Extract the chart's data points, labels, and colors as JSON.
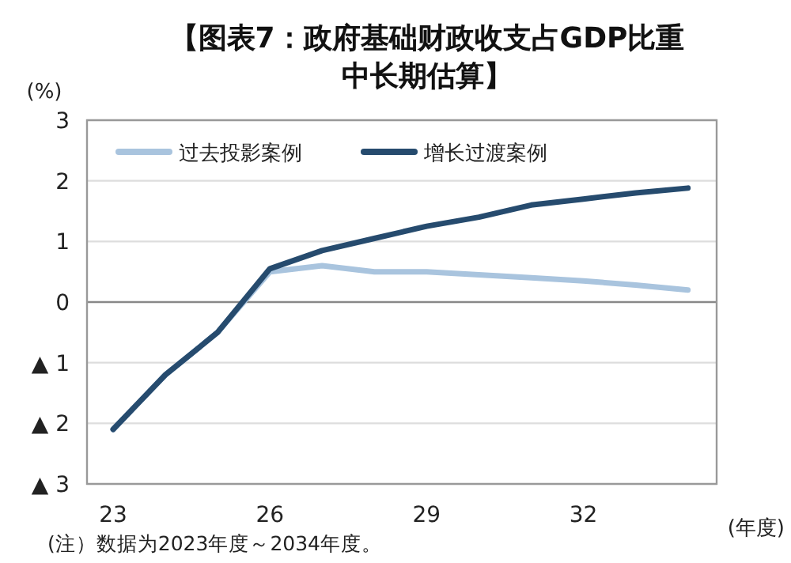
{
  "chart_data": {
    "type": "line",
    "title": "【图表7：政府基础财政收支占GDP比重中长期估算】",
    "ylabel": "(%)",
    "xlabel": "(年度)",
    "x": [
      23,
      24,
      25,
      26,
      27,
      28,
      29,
      30,
      31,
      32,
      33,
      34
    ],
    "series": [
      {
        "name": "过去投影案例",
        "color": "#a9c4de",
        "values": [
          -2.1,
          -1.2,
          -0.5,
          0.5,
          0.6,
          0.5,
          0.5,
          0.45,
          0.4,
          0.35,
          0.28,
          0.2
        ]
      },
      {
        "name": "增长过渡案例",
        "color": "#264b6e",
        "values": [
          -2.1,
          -1.2,
          -0.5,
          0.55,
          0.85,
          1.05,
          1.25,
          1.4,
          1.6,
          1.7,
          1.8,
          1.88
        ]
      }
    ],
    "xlim": [
      22.5,
      34.55
    ],
    "xticks": [
      23,
      26,
      29,
      32
    ],
    "ylim": [
      -3,
      3
    ],
    "yticks": [
      {
        "value": -3,
        "label": "▲ 3"
      },
      {
        "value": -2,
        "label": "▲ 2"
      },
      {
        "value": -1,
        "label": "▲ 1"
      },
      0,
      1,
      2,
      3
    ],
    "grid": "y",
    "legend": "top",
    "line_style": "solid",
    "annotations": [
      "(注）数据为2023年度～2034年度。"
    ]
  }
}
